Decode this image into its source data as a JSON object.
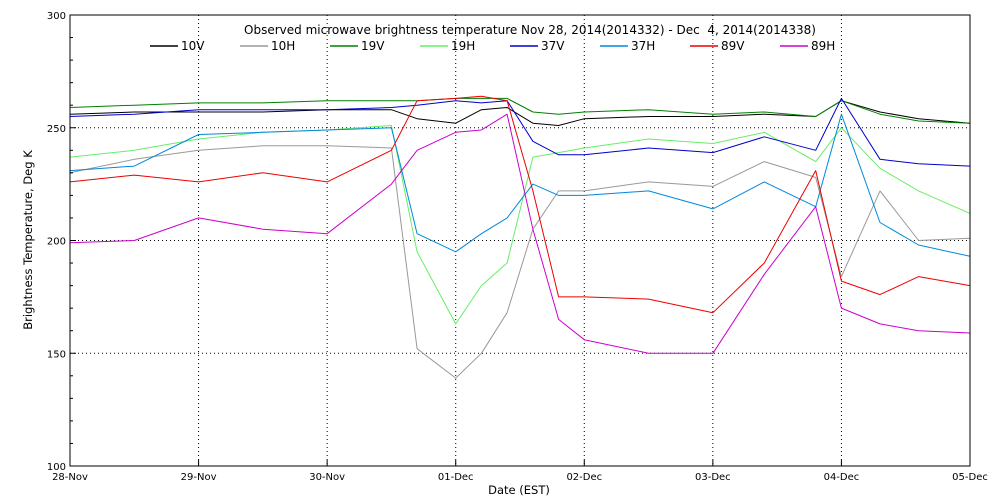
{
  "chart_data": {
    "type": "line",
    "title": "Observed microwave brightness temperature Nov 28, 2014(2014332) - Dec  4, 2014(2014338)",
    "xlabel": "Date (EST)",
    "ylabel": "Brightness Temperature, Deg K",
    "x_tick_labels": [
      "28-Nov",
      "29-Nov",
      "30-Nov",
      "01-Dec",
      "02-Dec",
      "03-Dec",
      "04-Dec",
      "05-Dec"
    ],
    "x_range": [
      "2014-11-28",
      "2014-12-05"
    ],
    "y_ticks": [
      100,
      150,
      200,
      250,
      300
    ],
    "ylim": [
      100,
      300
    ],
    "grid": "dotted",
    "legend": "top",
    "x": [
      "2014-11-28",
      "2014-11-28 12:00",
      "2014-11-29",
      "2014-11-29 12:00",
      "2014-11-30",
      "2014-11-30 12:00",
      "2014-11-30 16:48",
      "2014-12-01",
      "2014-12-01 04:48",
      "2014-12-01 09:36",
      "2014-12-01 14:24",
      "2014-12-01 19:12",
      "2014-12-02",
      "2014-12-02 12:00",
      "2014-12-03",
      "2014-12-03 09:36",
      "2014-12-03 19:12",
      "2014-12-04",
      "2014-12-04 07:12",
      "2014-12-04 14:24",
      "2014-12-05"
    ],
    "series": [
      {
        "name": "10V",
        "color": "#000000",
        "values": [
          256,
          257,
          257,
          257,
          258,
          258,
          254,
          252,
          258,
          259,
          252,
          251,
          254,
          255,
          255,
          256,
          255,
          262,
          257,
          254,
          252
        ]
      },
      {
        "name": "10H",
        "color": "#999999",
        "values": [
          230,
          236,
          240,
          242,
          242,
          241,
          152,
          139,
          150,
          168,
          205,
          222,
          222,
          226,
          224,
          235,
          228,
          184,
          222,
          200,
          201
        ]
      },
      {
        "name": "19V",
        "color": "#008000",
        "values": [
          259,
          260,
          261,
          261,
          262,
          262,
          262,
          263,
          263,
          263,
          257,
          256,
          257,
          258,
          256,
          257,
          255,
          262,
          256,
          253,
          252
        ]
      },
      {
        "name": "19H",
        "color": "#66ee66",
        "values": [
          237,
          240,
          245,
          248,
          249,
          251,
          195,
          163,
          180,
          190,
          237,
          239,
          241,
          245,
          243,
          248,
          235,
          250,
          232,
          222,
          212
        ]
      },
      {
        "name": "37V",
        "color": "#0000cc",
        "values": [
          255,
          256,
          258,
          258,
          258,
          259,
          260,
          262,
          261,
          262,
          244,
          238,
          238,
          241,
          239,
          246,
          240,
          263,
          236,
          234,
          233
        ]
      },
      {
        "name": "37H",
        "color": "#0088dd",
        "values": [
          231,
          233,
          247,
          248,
          249,
          250,
          203,
          195,
          203,
          210,
          225,
          220,
          220,
          222,
          214,
          226,
          215,
          256,
          208,
          198,
          193
        ]
      },
      {
        "name": "89V",
        "color": "#ee0000",
        "values": [
          226,
          229,
          226,
          230,
          226,
          240,
          262,
          263,
          264,
          262,
          222,
          175,
          175,
          174,
          168,
          190,
          231,
          182,
          176,
          184,
          180
        ]
      },
      {
        "name": "89H",
        "color": "#cc00cc",
        "values": [
          199,
          200,
          210,
          205,
          203,
          225,
          240,
          248,
          249,
          256,
          205,
          165,
          156,
          150,
          150,
          185,
          215,
          170,
          163,
          160,
          159
        ]
      }
    ]
  }
}
